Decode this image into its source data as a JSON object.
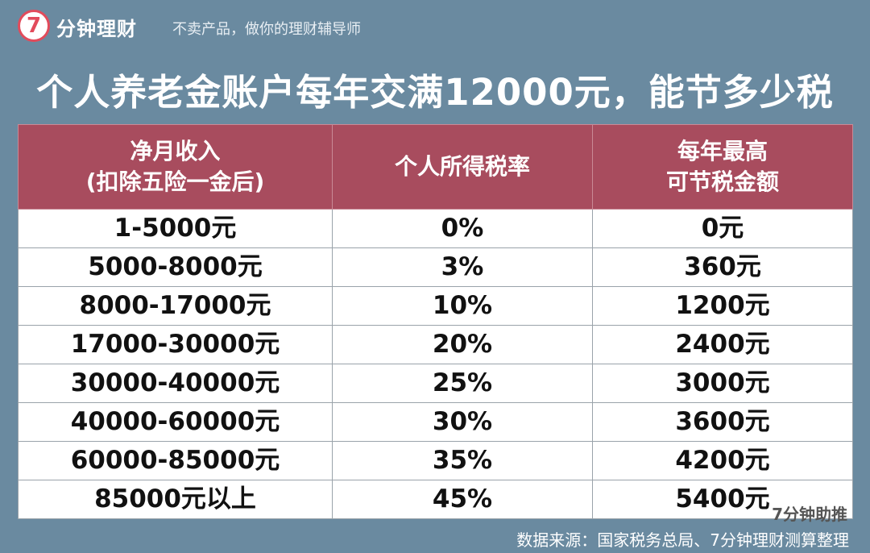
{
  "header": {
    "logo_glyph": "7",
    "brand": "分钟理财",
    "slogan": "不卖产品，做你的理财辅导师"
  },
  "title": "个人养老金账户每年交满12000元，能节多少税",
  "table": {
    "headers": [
      {
        "line1": "净月收入",
        "line2": "(扣除五险一金后)"
      },
      {
        "line1": "个人所得税率",
        "line2": ""
      },
      {
        "line1": "每年最高",
        "line2": "可节税金额"
      }
    ],
    "rows": [
      [
        "1-5000元",
        "0%",
        "0元"
      ],
      [
        "5000-8000元",
        "3%",
        "360元"
      ],
      [
        "8000-17000元",
        "10%",
        "1200元"
      ],
      [
        "17000-30000元",
        "20%",
        "2400元"
      ],
      [
        "30000-40000元",
        "25%",
        "3000元"
      ],
      [
        "40000-60000元",
        "30%",
        "3600元"
      ],
      [
        "60000-85000元",
        "35%",
        "4200元"
      ],
      [
        "85000元以上",
        "45%",
        "5400元"
      ]
    ]
  },
  "watermark": "分钟理财",
  "badge": "7分钟助推",
  "source": "数据来源：国家税务总局、7分钟理财测算整理",
  "colors": {
    "background": "#6a8aa0",
    "header_fill": "#a84c5e",
    "logo_accent": "#e24b5b"
  }
}
